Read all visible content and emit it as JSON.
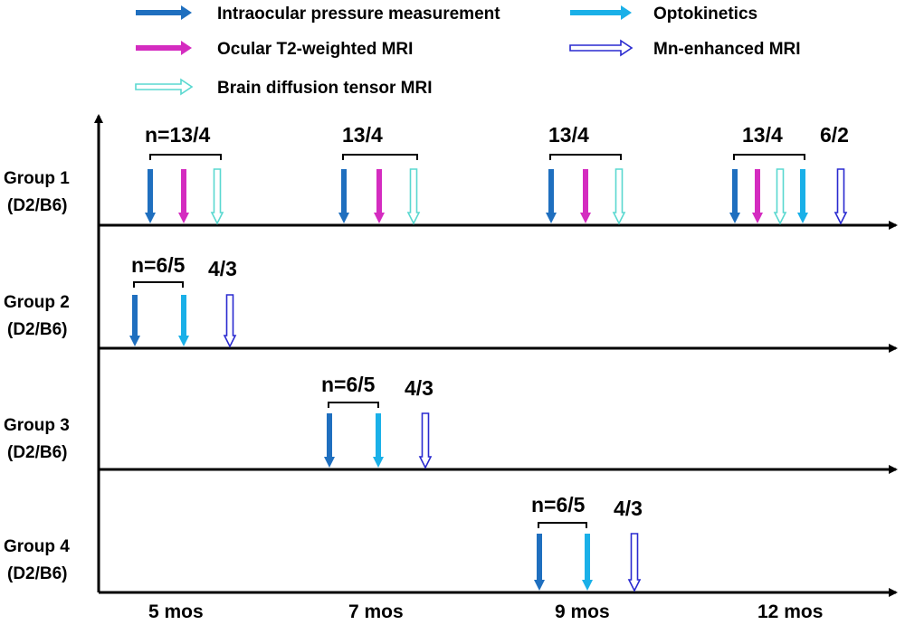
{
  "colors": {
    "iop": "#1f6fbf",
    "t2": "#d42cc0",
    "dti": "#5ad8d0",
    "opto": "#1ab0e8",
    "mn": "#2a2ad0"
  },
  "legend": [
    {
      "key": "iop",
      "label": "Intraocular pressure measurement",
      "style": "filled"
    },
    {
      "key": "opto",
      "label": "Optokinetics",
      "style": "filled"
    },
    {
      "key": "t2",
      "label": "Ocular T2-weighted MRI",
      "style": "filled"
    },
    {
      "key": "mn",
      "label": "Mn-enhanced MRI",
      "style": "outline"
    },
    {
      "key": "dti",
      "label": "Brain diffusion tensor MRI",
      "style": "outline"
    }
  ],
  "groups": [
    {
      "name": "Group 1",
      "strain": "(D2/B6)"
    },
    {
      "name": "Group 2",
      "strain": "(D2/B6)"
    },
    {
      "name": "Group 3",
      "strain": "(D2/B6)"
    },
    {
      "name": "Group 4",
      "strain": "(D2/B6)"
    }
  ],
  "sample_labels": {
    "g1_5mo": "n=13/4",
    "g1_7mo": "13/4",
    "g1_9mo": "13/4",
    "g1_12mo": "13/4",
    "g1_12mo_mn": "6/2",
    "g2": "n=6/5",
    "g2_mn": "4/3",
    "g3": "n=6/5",
    "g3_mn": "4/3",
    "g4": "n=6/5",
    "g4_mn": "4/3"
  },
  "timepoints": [
    "5 mos",
    "7 mos",
    "9 mos",
    "12 mos"
  ]
}
